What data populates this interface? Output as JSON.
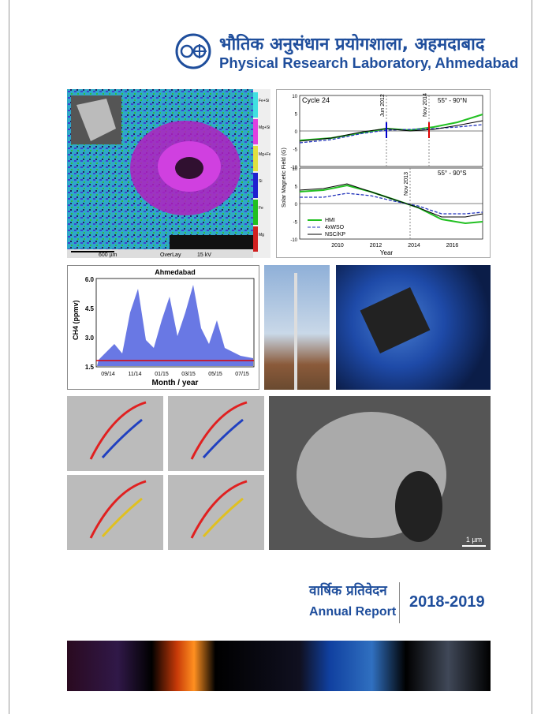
{
  "header": {
    "hindi_title": "भौतिक अनुसंधान प्रयोगशाला, अहमदाबाद",
    "title": "Physical Research Laboratory, Ahmedabad"
  },
  "mineral_map": {
    "legend": [
      "Fe+Si",
      "Mg+Si",
      "Mg+Fe",
      "Si",
      "Fe",
      "Mg"
    ],
    "scale": "600 µm",
    "mode": "OverLay",
    "voltage": "15 kV"
  },
  "solar_field": {
    "top_label": "Cycle 24",
    "top_annotations": [
      "Jun 2012",
      "Nov 2014"
    ],
    "top_region": "55° - 90°N",
    "bottom_annotation": "Nov 2013",
    "bottom_region": "55° - 90°S",
    "y_label": "Solar Magnetic Field (G)",
    "x_label": "Year",
    "yticks": [
      "10",
      "5",
      "0",
      "-5",
      "-10"
    ],
    "xticks": [
      "2010",
      "2012",
      "2014",
      "2016"
    ],
    "legend": [
      "HMI",
      "4xWSO",
      "NSC/KP"
    ]
  },
  "methane": {
    "title": "Ahmedabad",
    "y_label": "CH4 (ppmv)",
    "x_label": "Month / year",
    "yticks": [
      "6.0",
      "4.5",
      "3.0",
      "1.5"
    ],
    "xticks": [
      "09/14",
      "11/14",
      "01/15",
      "03/15",
      "05/15",
      "07/15"
    ]
  },
  "sem": {
    "scale": "1 µm"
  },
  "report": {
    "hindi_title": "वार्षिक प्रतिवेदन",
    "title": "Annual Report",
    "years": "2018-2019"
  }
}
